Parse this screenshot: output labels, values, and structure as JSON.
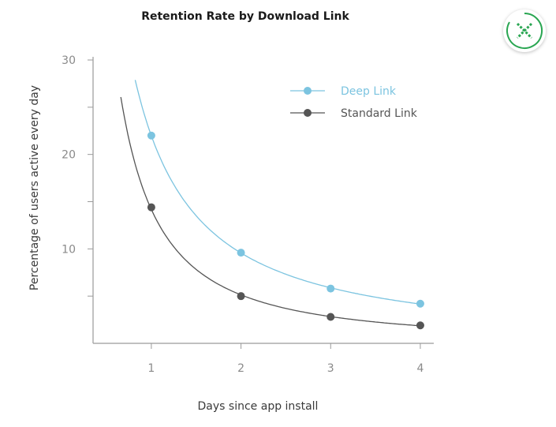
{
  "colors": {
    "deep": "#7cc4e0",
    "standard": "#555555",
    "axis": "#9a9a9a",
    "badge_green": "#2aa652"
  },
  "chart_data": {
    "type": "line",
    "title": "Retention Rate by Download Link",
    "xlabel": "Days since app install",
    "ylabel": "Percentage of users  active every day",
    "x": [
      1,
      2,
      3,
      4
    ],
    "xticks": [
      "1",
      "2",
      "3",
      "4"
    ],
    "yticks": [
      "10",
      "20",
      "30"
    ],
    "ylim": [
      0,
      30
    ],
    "xlim": [
      0.35,
      4.15
    ],
    "legend_position": "top-right",
    "series": [
      {
        "name": "Deep Link",
        "values": [
          22,
          9.6,
          5.8,
          4.2
        ]
      },
      {
        "name": "Standard Link",
        "values": [
          14.4,
          5.0,
          2.8,
          1.9
        ]
      }
    ]
  },
  "badge": {
    "icon": "close-icon"
  }
}
